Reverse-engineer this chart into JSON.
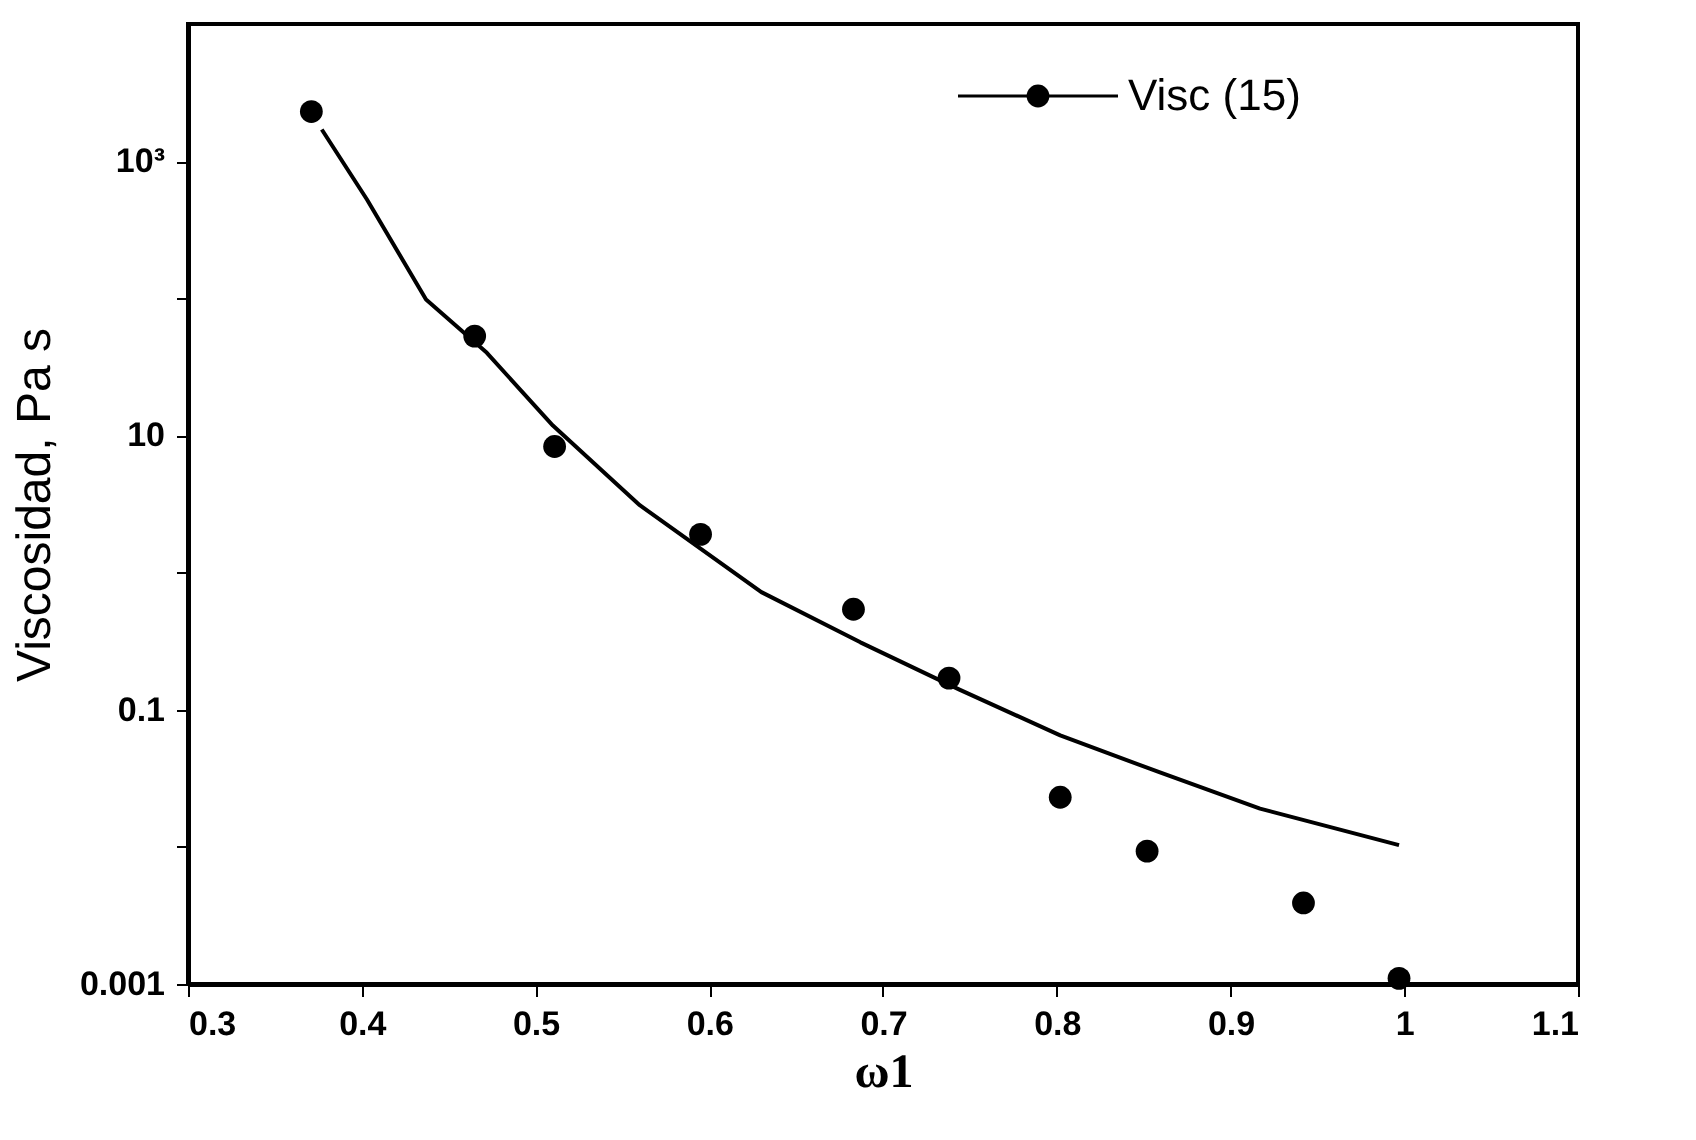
{
  "chart_data": {
    "type": "line",
    "xlabel": "ω1",
    "ylabel": "Viscosidad,  Pa s",
    "log": "y",
    "xlim": [
      0.3,
      1.1
    ],
    "xticks": [
      0.3,
      0.4,
      0.5,
      0.6,
      0.7,
      0.8,
      0.9,
      {
        "value": 1,
        "label": "1"
      },
      1.1
    ],
    "ylim": [
      0.001,
      10000
    ],
    "yticks": [
      0.001,
      {
        "value": 0.01,
        "label": null
      },
      0.1,
      {
        "value": 1,
        "label": null
      },
      10,
      {
        "value": 100,
        "label": null
      },
      {
        "value": 1000,
        "label": "10³"
      }
    ],
    "grid": false,
    "legend": "top right",
    "series": [
      {
        "name": "Visc  (15)",
        "type": "scatter",
        "marker": "circle",
        "color": "#000000",
        "x": [
          0.371,
          0.465,
          0.511,
          0.595,
          0.683,
          0.738,
          0.802,
          0.852,
          0.942,
          0.997
        ],
        "values": [
          2300,
          53,
          8.3,
          1.9,
          0.54,
          0.17,
          0.023,
          0.0093,
          0.0039,
          0.0011
        ]
      },
      {
        "color": "#000000",
        "line_style": "solid",
        "x": [
          0.377,
          0.403,
          0.437,
          0.472,
          0.51,
          0.56,
          0.63,
          0.687,
          0.744,
          0.802,
          0.859,
          0.917,
          0.997
        ],
        "values": [
          1700,
          525,
          98,
          40,
          11.8,
          3.1,
          0.72,
          0.31,
          0.14,
          0.065,
          0.035,
          0.019,
          0.0103
        ]
      }
    ]
  }
}
